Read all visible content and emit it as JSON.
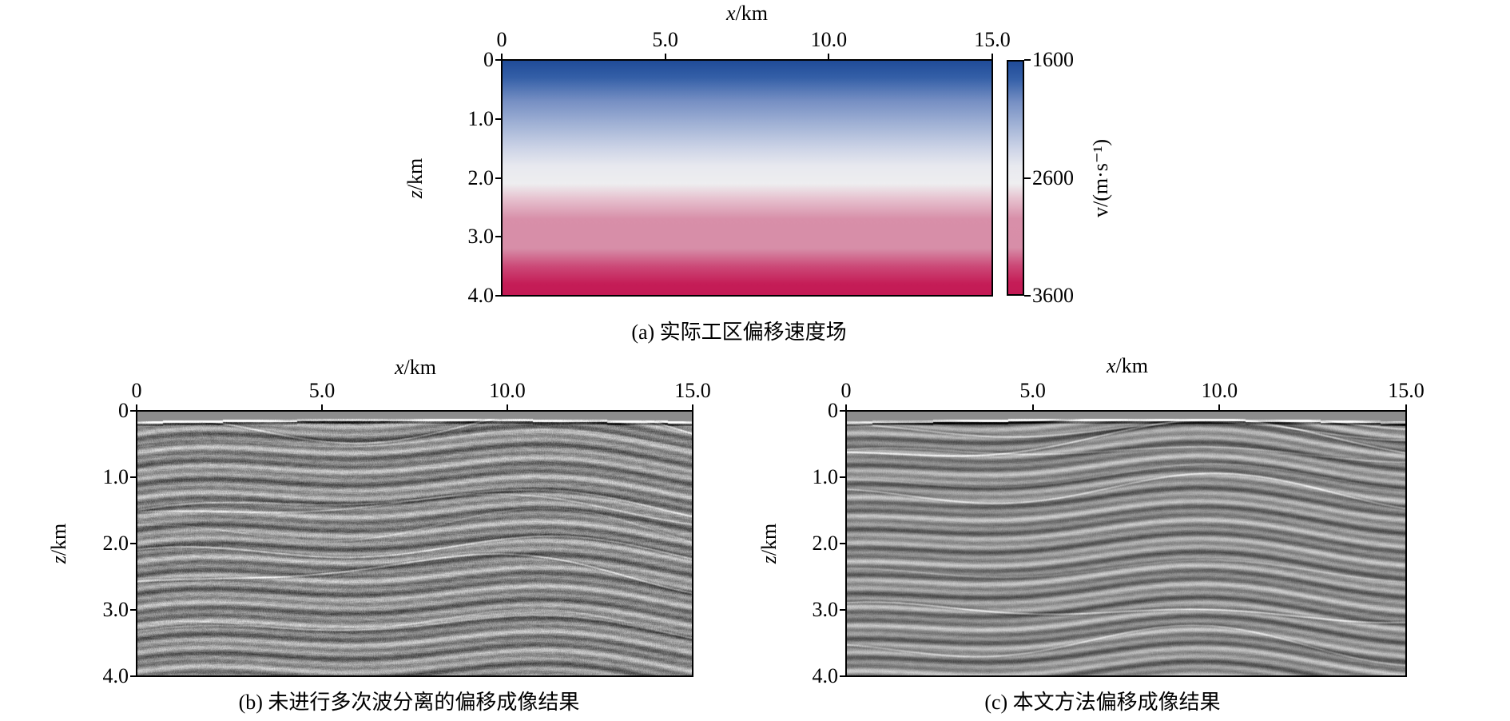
{
  "chart_data": [
    {
      "type": "heatmap",
      "id": "a",
      "caption": "(a) 实际工区偏移速度场",
      "xlabel_var": "x",
      "xlabel_unit": "/km",
      "ylabel_var": "z",
      "ylabel_unit": "/km",
      "xlim": [
        0,
        15
      ],
      "ylim": [
        0,
        4
      ],
      "x_ticks": [
        "0",
        "5.0",
        "10.0",
        "15.0"
      ],
      "x_tick_values": [
        0,
        5,
        10,
        15
      ],
      "y_ticks": [
        "0",
        "1.0",
        "2.0",
        "3.0",
        "4.0"
      ],
      "y_tick_values": [
        0,
        1,
        2,
        3,
        4
      ],
      "colorbar": {
        "label": "v/(m·s⁻¹)",
        "label_var": "v",
        "label_unit": "/(m·s",
        "label_exp": "-1",
        "label_close": ")",
        "range": [
          1600,
          3600
        ],
        "ticks": [
          "1600",
          "2600",
          "3600"
        ],
        "tick_values": [
          1600,
          2600,
          3600
        ],
        "colors": [
          "#1f4e9a",
          "#eeeef2",
          "#c51c56"
        ]
      },
      "depth_color_profile": [
        {
          "z": 0.0,
          "color": "#1f4b98"
        },
        {
          "z": 0.3,
          "color": "#3560a8"
        },
        {
          "z": 0.7,
          "color": "#7790c4"
        },
        {
          "z": 1.1,
          "color": "#a2b3d6"
        },
        {
          "z": 1.5,
          "color": "#cdd4e7"
        },
        {
          "z": 1.8,
          "color": "#e8e9ef"
        },
        {
          "z": 2.1,
          "color": "#eeeef0"
        },
        {
          "z": 2.35,
          "color": "#e7c3d0"
        },
        {
          "z": 2.7,
          "color": "#d88fa9"
        },
        {
          "z": 3.2,
          "color": "#d78ea8"
        },
        {
          "z": 3.5,
          "color": "#cc4a78"
        },
        {
          "z": 3.8,
          "color": "#c51d57"
        },
        {
          "z": 4.0,
          "color": "#c41a55"
        }
      ]
    },
    {
      "type": "heatmap",
      "id": "b",
      "caption": "(b) 未进行多次波分离的偏移成像结果",
      "xlabel_var": "x",
      "xlabel_unit": "/km",
      "ylabel_var": "z",
      "ylabel_unit": "/km",
      "xlim": [
        0,
        15
      ],
      "ylim": [
        0,
        4
      ],
      "x_ticks": [
        "0",
        "5.0",
        "10.0",
        "15.0"
      ],
      "x_tick_values": [
        0,
        5,
        10,
        15
      ],
      "y_ticks": [
        "0",
        "1.0",
        "2.0",
        "3.0",
        "4.0"
      ],
      "y_tick_values": [
        0,
        1,
        2,
        3,
        4
      ],
      "colormap": "gray",
      "water_layer_depth_km": 0.15,
      "seed": 7,
      "noise": 0.55
    },
    {
      "type": "heatmap",
      "id": "c",
      "caption": "(c) 本文方法偏移成像结果",
      "xlabel_var": "x",
      "xlabel_unit": "/km",
      "ylabel_var": "z",
      "ylabel_unit": "/km",
      "xlim": [
        0,
        15
      ],
      "ylim": [
        0,
        4
      ],
      "x_ticks": [
        "0",
        "5.0",
        "10.0",
        "15.0"
      ],
      "x_tick_values": [
        0,
        5,
        10,
        15
      ],
      "y_ticks": [
        "0",
        "1.0",
        "2.0",
        "3.0",
        "4.0"
      ],
      "y_tick_values": [
        0,
        1,
        2,
        3,
        4
      ],
      "colormap": "gray",
      "water_layer_depth_km": 0.15,
      "seed": 13,
      "noise": 0.3
    }
  ]
}
